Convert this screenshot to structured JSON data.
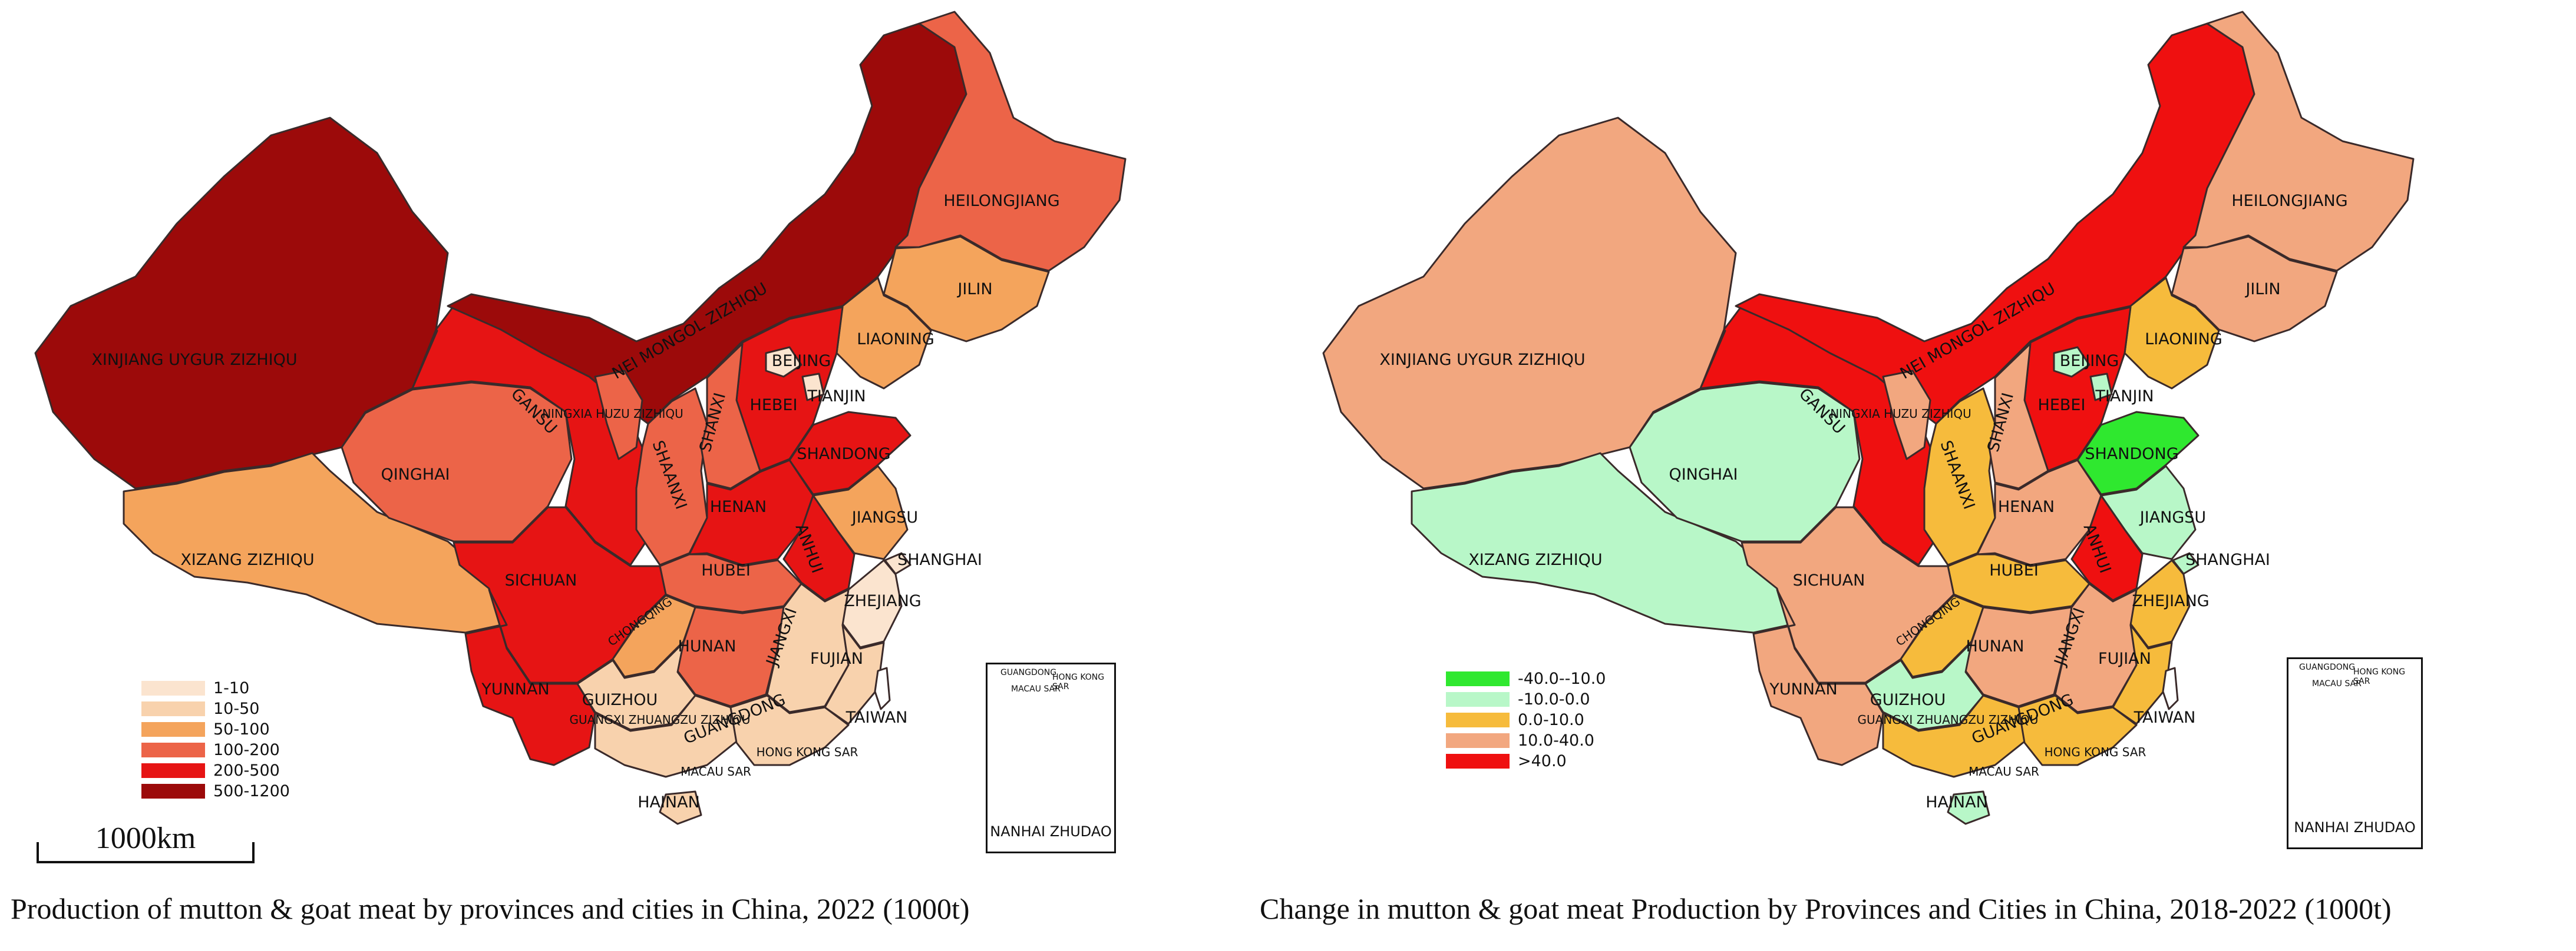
{
  "colors": {
    "c1_10": "#fbe4cf",
    "c10_50": "#f8d2ad",
    "c50_100": "#f4a45c",
    "c100_200": "#ec6448",
    "c200_500": "#e61414",
    "c500_1200": "#9c0a0a",
    "chg_neg40_neg10": "#2fe82f",
    "chg_neg10_0": "#b8f7c8",
    "chg_0_10": "#f6bb3c",
    "chg_10_40": "#f2a77f",
    "chg_gt40": "#ef1010"
  },
  "left_map": {
    "caption": "Production of mutton & goat meat by provinces and cities in China, 2022 (1000t)",
    "scale_label": "1000km",
    "legend": [
      {
        "label": "1-10",
        "color": "#fbe4cf"
      },
      {
        "label": "10-50",
        "color": "#f8d2ad"
      },
      {
        "label": "50-100",
        "color": "#f4a45c"
      },
      {
        "label": "100-200",
        "color": "#ec6448"
      },
      {
        "label": "200-500",
        "color": "#e61414"
      },
      {
        "label": "500-1200",
        "color": "#9c0a0a"
      }
    ],
    "provinces": {
      "xinjiang": {
        "name": "XINJIANG UYGUR ZIZHIQU",
        "class": "500-1200"
      },
      "xizang": {
        "name": "XIZANG ZIZHIQU",
        "class": "50-100"
      },
      "qinghai": {
        "name": "QINGHAI",
        "class": "100-200"
      },
      "gansu": {
        "name": "GANSU",
        "class": "200-500"
      },
      "neimongol": {
        "name": "NEI MONGOL ZIZHIQU",
        "class": "500-1200"
      },
      "heilongjiang": {
        "name": "HEILONGJIANG",
        "class": "100-200"
      },
      "jilin": {
        "name": "JILIN",
        "class": "50-100"
      },
      "liaoning": {
        "name": "LIAONING",
        "class": "50-100"
      },
      "beijing": {
        "name": "BEIJING",
        "class": "1-10"
      },
      "tianjin": {
        "name": "TIANJIN",
        "class": "1-10"
      },
      "hebei": {
        "name": "HEBEI",
        "class": "200-500"
      },
      "shanxi": {
        "name": "SHANXI",
        "class": "100-200"
      },
      "shaanxi": {
        "name": "SHAANXI",
        "class": "100-200"
      },
      "ningxia": {
        "name": "NINGXIA HUZU ZIZHIQU",
        "class": "100-200"
      },
      "shandong": {
        "name": "SHANDONG",
        "class": "200-500"
      },
      "henan": {
        "name": "HENAN",
        "class": "200-500"
      },
      "jiangsu": {
        "name": "JIANGSU",
        "class": "50-100"
      },
      "anhui": {
        "name": "ANHUI",
        "class": "200-500"
      },
      "shanghai": {
        "name": "SHANGHAI",
        "class": "1-10"
      },
      "sichuan": {
        "name": "SICHUAN",
        "class": "200-500"
      },
      "chongqing": {
        "name": "CHONGQING",
        "class": "50-100"
      },
      "hubei": {
        "name": "HUBEI",
        "class": "100-200"
      },
      "hunan": {
        "name": "HUNAN",
        "class": "100-200"
      },
      "zhejiang": {
        "name": "ZHEJIANG",
        "class": "1-10"
      },
      "jiangxi": {
        "name": "JIANGXI",
        "class": "10-50"
      },
      "fujian": {
        "name": "FUJIAN",
        "class": "10-50"
      },
      "guizhou": {
        "name": "GUIZHOU",
        "class": "10-50"
      },
      "yunnan": {
        "name": "YUNNAN",
        "class": "200-500"
      },
      "guangxi": {
        "name": "GUANGXI ZHUANGZU ZIZHIQU",
        "class": "10-50"
      },
      "guangdong": {
        "name": "GUANGDONG",
        "class": "10-50"
      },
      "hainan": {
        "name": "HAINAN",
        "class": "10-50"
      },
      "taiwan": {
        "name": "TAIWAN"
      },
      "hongkong": {
        "name": "HONG KONG SAR"
      },
      "macau": {
        "name": "MACAU SAR"
      }
    },
    "inset_label": "NANHAI ZHUDAO",
    "inset_labels": [
      "GUANGDONG",
      "HONG KONG SAR",
      "MACAU SAR"
    ]
  },
  "right_map": {
    "caption": "Change in  mutton & goat meat Production by Provinces and Cities in China, 2018-2022 (1000t)",
    "legend": [
      {
        "label": "-40.0--10.0",
        "color": "#2fe82f"
      },
      {
        "label": "-10.0-0.0",
        "color": "#b8f7c8"
      },
      {
        "label": "0.0-10.0",
        "color": "#f6bb3c"
      },
      {
        "label": "10.0-40.0",
        "color": "#f2a77f"
      },
      {
        "label": ">40.0",
        "color": "#ef1010"
      }
    ],
    "provinces": {
      "xinjiang": {
        "name": "XINJIANG UYGUR ZIZHIQU",
        "class": "10.0-40.0"
      },
      "xizang": {
        "name": "XIZANG ZIZHIQU",
        "class": "-10.0-0.0"
      },
      "qinghai": {
        "name": "QINGHAI",
        "class": "-10.0-0.0"
      },
      "gansu": {
        "name": "GANSU",
        "class": ">40.0"
      },
      "neimongol": {
        "name": "NEI MONGOL ZIZHIQU",
        "class": ">40.0"
      },
      "heilongjiang": {
        "name": "HEILONGJIANG",
        "class": "10.0-40.0"
      },
      "jilin": {
        "name": "JILIN",
        "class": "10.0-40.0"
      },
      "liaoning": {
        "name": "LIAONING",
        "class": "0.0-10.0"
      },
      "beijing": {
        "name": "BEIJING",
        "class": "-10.0-0.0"
      },
      "tianjin": {
        "name": "TIANJIN",
        "class": "-10.0-0.0"
      },
      "hebei": {
        "name": "HEBEI",
        "class": ">40.0"
      },
      "shanxi": {
        "name": "SHANXI",
        "class": "10.0-40.0"
      },
      "shaanxi": {
        "name": "SHAANXI",
        "class": "0.0-10.0"
      },
      "ningxia": {
        "name": "NINGXIA HUZU ZIZHIQU",
        "class": "10.0-40.0"
      },
      "shandong": {
        "name": "SHANDONG",
        "class": "-40.0--10.0"
      },
      "henan": {
        "name": "HENAN",
        "class": "10.0-40.0"
      },
      "jiangsu": {
        "name": "JIANGSU",
        "class": "-10.0-0.0"
      },
      "anhui": {
        "name": "ANHUI",
        "class": ">40.0"
      },
      "shanghai": {
        "name": "SHANGHAI",
        "class": "-10.0-0.0"
      },
      "sichuan": {
        "name": "SICHUAN",
        "class": "10.0-40.0"
      },
      "chongqing": {
        "name": "CHONGQING",
        "class": "0.0-10.0"
      },
      "hubei": {
        "name": "HUBEI",
        "class": "0.0-10.0"
      },
      "hunan": {
        "name": "HUNAN",
        "class": "10.0-40.0"
      },
      "zhejiang": {
        "name": "ZHEJIANG",
        "class": "0.0-10.0"
      },
      "jiangxi": {
        "name": "JIANGXI",
        "class": "10.0-40.0"
      },
      "fujian": {
        "name": "FUJIAN",
        "class": "0.0-10.0"
      },
      "guizhou": {
        "name": "GUIZHOU",
        "class": "-10.0-0.0"
      },
      "yunnan": {
        "name": "YUNNAN",
        "class": "10.0-40.0"
      },
      "guangxi": {
        "name": "GUANGXI ZHUANGZU ZIZHIQU",
        "class": "0.0-10.0"
      },
      "guangdong": {
        "name": "GUANGDONG",
        "class": "0.0-10.0"
      },
      "hainan": {
        "name": "HAINAN",
        "class": "-10.0-0.0"
      },
      "taiwan": {
        "name": "TAIWAN"
      },
      "hongkong": {
        "name": "HONG KONG SAR"
      },
      "macau": {
        "name": "MACAU SAR"
      }
    },
    "inset_label": "NANHAI ZHUDAO",
    "inset_labels": [
      "GUANGDONG",
      "HONG KONG SAR",
      "MACAU SAR"
    ]
  }
}
